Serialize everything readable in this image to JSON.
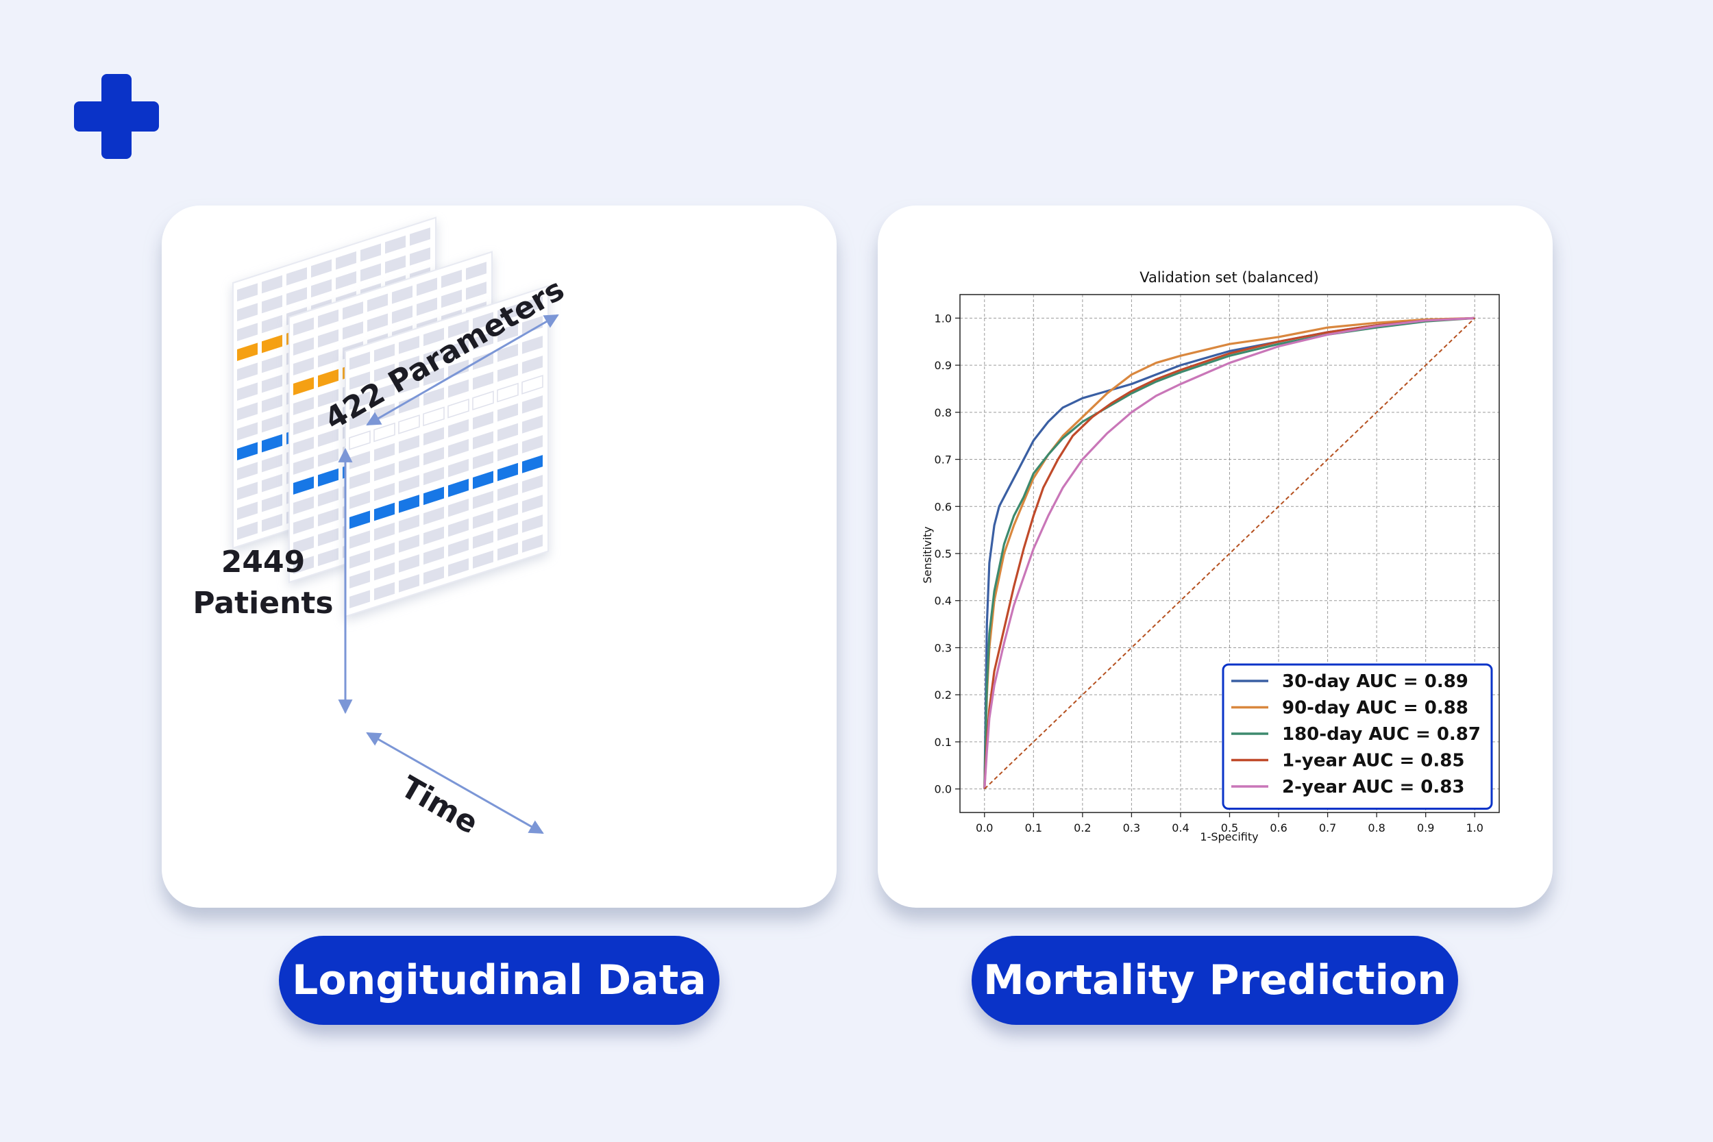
{
  "colors": {
    "background": "#eff2fb",
    "brand": "#0a33c8",
    "orange": "#f5a013",
    "blue": "#1777e6",
    "grid_cell": "#dfe1ec"
  },
  "logo": {
    "icon": "plus-cross-icon"
  },
  "left_panel": {
    "pill_label": "Longitudinal Data",
    "parameters_label": "422 Parameters",
    "patients_count": "2449",
    "patients_word": "Patients",
    "time_label": "Time"
  },
  "right_panel": {
    "pill_label": "Mortality Prediction"
  },
  "chart_data": {
    "type": "line",
    "title": "Validation set (balanced)",
    "xlabel": "1-Specifity",
    "ylabel": "Sensitivity",
    "xlim": [
      -0.05,
      1.05
    ],
    "ylim": [
      -0.05,
      1.05
    ],
    "xticks": [
      0.0,
      0.1,
      0.2,
      0.3,
      0.4,
      0.5,
      0.6,
      0.7,
      0.8,
      0.9,
      1.0
    ],
    "yticks": [
      0.0,
      0.1,
      0.2,
      0.3,
      0.4,
      0.5,
      0.6,
      0.7,
      0.8,
      0.9,
      1.0
    ],
    "grid": true,
    "legend_position": "lower right",
    "series": [
      {
        "name": "30-day AUC = 0.89",
        "color": "#3a5fa3",
        "x": [
          0,
          0.005,
          0.01,
          0.02,
          0.03,
          0.05,
          0.07,
          0.1,
          0.13,
          0.16,
          0.2,
          0.25,
          0.3,
          0.35,
          0.4,
          0.5,
          0.6,
          0.7,
          0.8,
          0.9,
          1.0
        ],
        "y": [
          0,
          0.35,
          0.48,
          0.56,
          0.6,
          0.64,
          0.68,
          0.74,
          0.78,
          0.81,
          0.83,
          0.845,
          0.86,
          0.88,
          0.9,
          0.93,
          0.95,
          0.97,
          0.985,
          0.995,
          1.0
        ]
      },
      {
        "name": "90-day AUC = 0.88",
        "color": "#d9873e",
        "x": [
          0,
          0.005,
          0.01,
          0.02,
          0.04,
          0.06,
          0.08,
          0.1,
          0.13,
          0.16,
          0.2,
          0.25,
          0.3,
          0.35,
          0.4,
          0.5,
          0.6,
          0.7,
          0.8,
          0.9,
          1.0
        ],
        "y": [
          0,
          0.2,
          0.3,
          0.4,
          0.5,
          0.56,
          0.61,
          0.66,
          0.71,
          0.75,
          0.79,
          0.84,
          0.88,
          0.905,
          0.92,
          0.945,
          0.96,
          0.98,
          0.99,
          0.997,
          1.0
        ]
      },
      {
        "name": "180-day AUC = 0.87",
        "color": "#3d8a6e",
        "x": [
          0,
          0.005,
          0.01,
          0.02,
          0.04,
          0.06,
          0.08,
          0.1,
          0.13,
          0.16,
          0.2,
          0.25,
          0.3,
          0.35,
          0.4,
          0.5,
          0.6,
          0.7,
          0.8,
          0.9,
          1.0
        ],
        "y": [
          0,
          0.22,
          0.33,
          0.42,
          0.52,
          0.58,
          0.62,
          0.67,
          0.71,
          0.745,
          0.78,
          0.81,
          0.84,
          0.865,
          0.885,
          0.92,
          0.945,
          0.965,
          0.98,
          0.993,
          1.0
        ]
      },
      {
        "name": "1-year AUC = 0.85",
        "color": "#c04a2a",
        "x": [
          0,
          0.005,
          0.01,
          0.02,
          0.04,
          0.06,
          0.08,
          0.1,
          0.12,
          0.15,
          0.18,
          0.22,
          0.26,
          0.3,
          0.35,
          0.4,
          0.5,
          0.6,
          0.7,
          0.8,
          0.9,
          1.0
        ],
        "y": [
          0,
          0.1,
          0.17,
          0.25,
          0.34,
          0.43,
          0.51,
          0.58,
          0.64,
          0.7,
          0.75,
          0.79,
          0.82,
          0.845,
          0.87,
          0.89,
          0.925,
          0.95,
          0.97,
          0.985,
          0.995,
          1.0
        ]
      },
      {
        "name": "2-year AUC = 0.83",
        "color": "#c976b8",
        "x": [
          0,
          0.005,
          0.01,
          0.02,
          0.04,
          0.06,
          0.08,
          0.1,
          0.13,
          0.16,
          0.2,
          0.25,
          0.3,
          0.35,
          0.4,
          0.5,
          0.6,
          0.7,
          0.8,
          0.9,
          1.0
        ],
        "y": [
          0,
          0.08,
          0.15,
          0.22,
          0.31,
          0.39,
          0.45,
          0.51,
          0.58,
          0.64,
          0.7,
          0.755,
          0.8,
          0.835,
          0.86,
          0.905,
          0.94,
          0.965,
          0.983,
          0.995,
          1.0
        ]
      },
      {
        "name": "",
        "color": "#b5501f",
        "style": "dashed",
        "x": [
          0,
          1.0
        ],
        "y": [
          0,
          1.0
        ]
      }
    ]
  }
}
